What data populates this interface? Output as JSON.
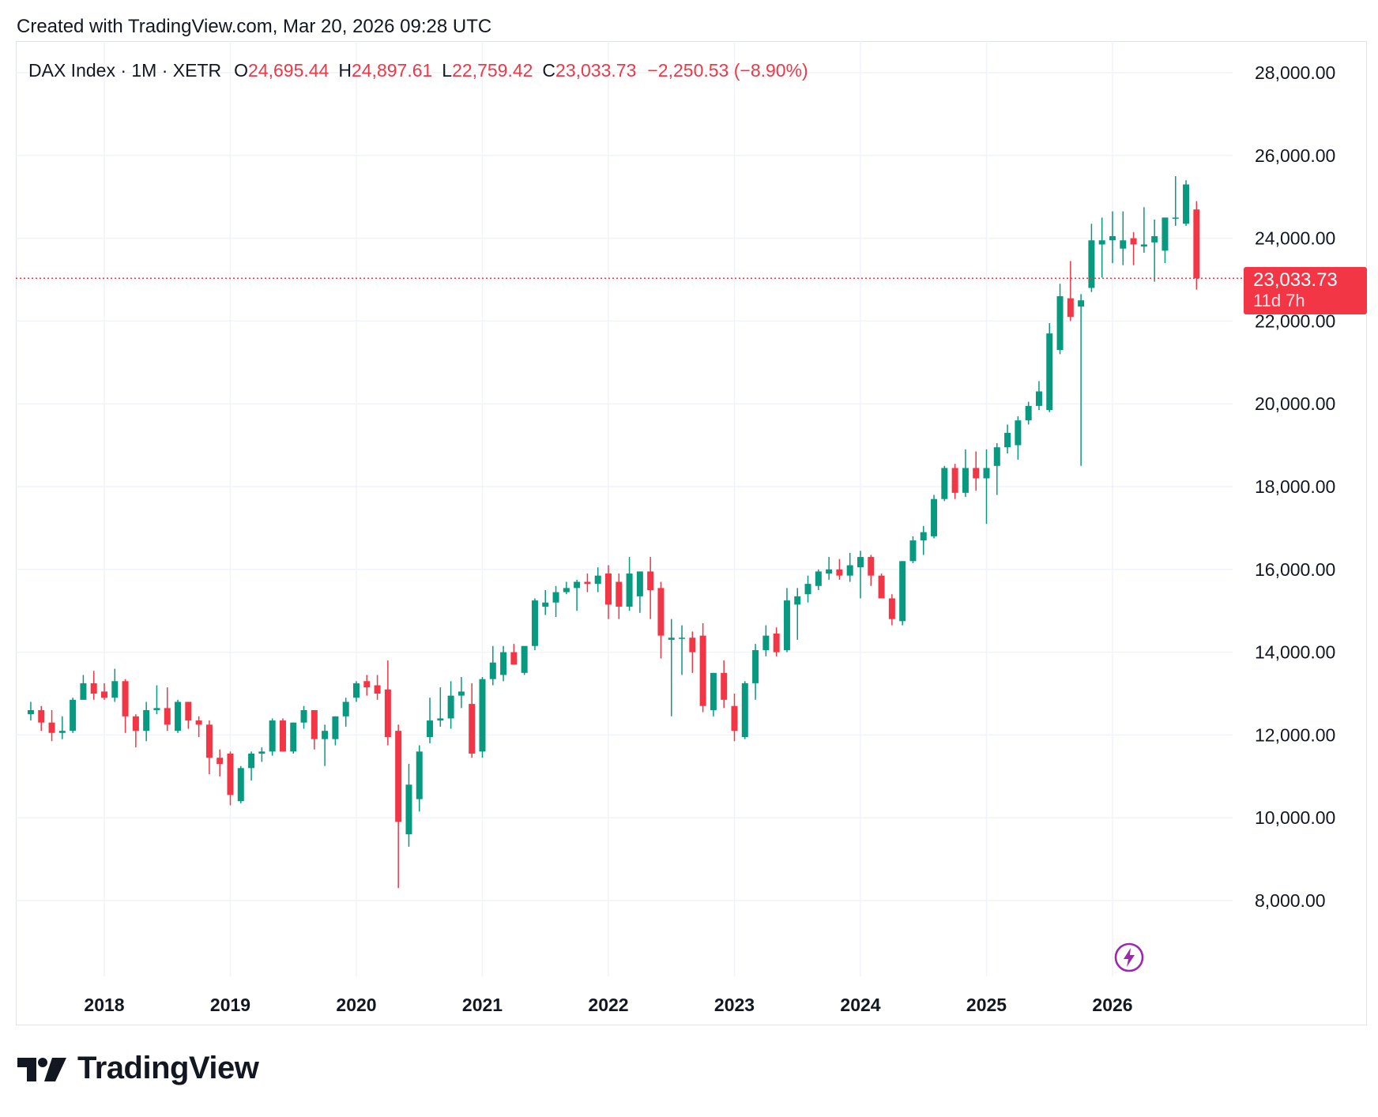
{
  "header": {
    "created_text": "Created with TradingView.com, Mar 20, 2026 09:28 UTC"
  },
  "legend": {
    "symbol": "DAX Index · 1M · XETR",
    "open_key": "O",
    "open": "24,695.44",
    "high_key": "H",
    "high": "24,897.61",
    "low_key": "L",
    "low": "22,759.42",
    "close_key": "C",
    "close": "23,033.73",
    "change": "−2,250.53 (−8.90%)"
  },
  "price_tag": {
    "price": "23,033.73",
    "countdown": "11d 7h"
  },
  "branding": {
    "logo_text": "TradingView"
  },
  "colors": {
    "up": "#089981",
    "down": "#f23645",
    "grid": "#f0f3fa",
    "bolt": "#9c27b0"
  },
  "icons": {
    "alert": "lightning-bolt-icon",
    "logo": "tradingview-logo-icon"
  },
  "chart_data": {
    "type": "candlestick",
    "interval": "1M",
    "ylim": [
      6500,
      28500
    ],
    "y_ticks": [
      8000,
      10000,
      12000,
      14000,
      16000,
      18000,
      20000,
      22000,
      24000,
      26000,
      28000
    ],
    "y_tick_labels": [
      "8,000.00",
      "10,000.00",
      "12,000.00",
      "14,000.00",
      "16,000.00",
      "18,000.00",
      "20,000.00",
      "22,000.00",
      "24,000.00",
      "26,000.00",
      "28,000.00"
    ],
    "x_ticks": [
      "2018-01",
      "2019-01",
      "2020-01",
      "2021-01",
      "2022-01",
      "2023-01",
      "2024-01",
      "2025-01",
      "2026-01"
    ],
    "x_tick_labels": [
      "2018",
      "2019",
      "2020",
      "2021",
      "2022",
      "2023",
      "2024",
      "2025",
      "2026"
    ],
    "x_range": [
      "2017-05",
      "2026-10"
    ],
    "last_price": 23033.73,
    "candles": [
      {
        "t": "2017-06",
        "o": 12500,
        "h": 12800,
        "l": 12350,
        "c": 12600
      },
      {
        "t": "2017-07",
        "o": 12600,
        "h": 12700,
        "l": 12100,
        "c": 12300
      },
      {
        "t": "2017-08",
        "o": 12300,
        "h": 12600,
        "l": 11850,
        "c": 12050
      },
      {
        "t": "2017-09",
        "o": 12050,
        "h": 12450,
        "l": 11900,
        "c": 12100
      },
      {
        "t": "2017-10",
        "o": 12100,
        "h": 12900,
        "l": 12050,
        "c": 12850
      },
      {
        "t": "2017-11",
        "o": 12850,
        "h": 13450,
        "l": 12850,
        "c": 13250
      },
      {
        "t": "2017-12",
        "o": 13250,
        "h": 13550,
        "l": 12850,
        "c": 13000
      },
      {
        "t": "2018-01",
        "o": 13050,
        "h": 13250,
        "l": 12850,
        "c": 12900
      },
      {
        "t": "2018-02",
        "o": 12900,
        "h": 13600,
        "l": 12800,
        "c": 13300
      },
      {
        "t": "2018-03",
        "o": 13300,
        "h": 13350,
        "l": 12050,
        "c": 12450
      },
      {
        "t": "2018-04",
        "o": 12450,
        "h": 12500,
        "l": 11700,
        "c": 12100
      },
      {
        "t": "2018-05",
        "o": 12100,
        "h": 12800,
        "l": 11850,
        "c": 12600
      },
      {
        "t": "2018-06",
        "o": 12600,
        "h": 13200,
        "l": 12500,
        "c": 12650
      },
      {
        "t": "2018-07",
        "o": 12650,
        "h": 13150,
        "l": 12100,
        "c": 12250
      },
      {
        "t": "2018-08",
        "o": 12100,
        "h": 12850,
        "l": 12050,
        "c": 12800
      },
      {
        "t": "2018-09",
        "o": 12800,
        "h": 12800,
        "l": 12150,
        "c": 12350
      },
      {
        "t": "2018-10",
        "o": 12350,
        "h": 12450,
        "l": 11950,
        "c": 12250
      },
      {
        "t": "2018-11",
        "o": 12250,
        "h": 12350,
        "l": 11050,
        "c": 11450
      },
      {
        "t": "2018-12",
        "o": 11450,
        "h": 11650,
        "l": 11000,
        "c": 11300
      },
      {
        "t": "2019-01",
        "o": 11550,
        "h": 11600,
        "l": 10300,
        "c": 10550
      },
      {
        "t": "2019-02",
        "o": 10400,
        "h": 11250,
        "l": 10350,
        "c": 11200
      },
      {
        "t": "2019-03",
        "o": 11200,
        "h": 11600,
        "l": 10900,
        "c": 11550
      },
      {
        "t": "2019-04",
        "o": 11550,
        "h": 11700,
        "l": 11350,
        "c": 11600
      },
      {
        "t": "2019-05",
        "o": 11600,
        "h": 12400,
        "l": 11500,
        "c": 12350
      },
      {
        "t": "2019-06",
        "o": 12350,
        "h": 12400,
        "l": 11600,
        "c": 11600
      },
      {
        "t": "2019-07",
        "o": 11600,
        "h": 12300,
        "l": 11550,
        "c": 12300
      },
      {
        "t": "2019-08",
        "o": 12300,
        "h": 12700,
        "l": 12150,
        "c": 12600
      },
      {
        "t": "2019-09",
        "o": 12600,
        "h": 12600,
        "l": 11650,
        "c": 11900
      },
      {
        "t": "2019-10",
        "o": 11900,
        "h": 12250,
        "l": 11250,
        "c": 12100
      },
      {
        "t": "2019-11",
        "o": 11900,
        "h": 12450,
        "l": 11750,
        "c": 12450
      },
      {
        "t": "2019-12",
        "o": 12450,
        "h": 12900,
        "l": 12200,
        "c": 12800
      },
      {
        "t": "2020-01",
        "o": 12900,
        "h": 13300,
        "l": 12800,
        "c": 13250
      },
      {
        "t": "2020-02",
        "o": 13300,
        "h": 13450,
        "l": 12950,
        "c": 13150
      },
      {
        "t": "2020-03",
        "o": 13200,
        "h": 13450,
        "l": 12850,
        "c": 13000
      },
      {
        "t": "2020-04",
        "o": 13100,
        "h": 13800,
        "l": 11750,
        "c": 11950
      },
      {
        "t": "2020-05",
        "o": 12100,
        "h": 12250,
        "l": 8300,
        "c": 9900
      },
      {
        "t": "2020-06",
        "o": 9600,
        "h": 11300,
        "l": 9300,
        "c": 10800
      },
      {
        "t": "2020-07",
        "o": 10450,
        "h": 11750,
        "l": 10150,
        "c": 11600
      },
      {
        "t": "2020-08",
        "o": 11950,
        "h": 12900,
        "l": 11800,
        "c": 12350
      },
      {
        "t": "2020-09",
        "o": 12350,
        "h": 13150,
        "l": 12200,
        "c": 12400
      },
      {
        "t": "2020-10",
        "o": 12400,
        "h": 13300,
        "l": 12150,
        "c": 12950
      },
      {
        "t": "2020-11",
        "o": 12950,
        "h": 13400,
        "l": 12650,
        "c": 13050
      },
      {
        "t": "2020-12",
        "o": 12750,
        "h": 13250,
        "l": 11450,
        "c": 11550
      },
      {
        "t": "2021-01",
        "o": 11600,
        "h": 13400,
        "l": 11450,
        "c": 13350
      },
      {
        "t": "2021-02",
        "o": 13350,
        "h": 14150,
        "l": 13200,
        "c": 13750
      },
      {
        "t": "2021-03",
        "o": 13450,
        "h": 14150,
        "l": 13300,
        "c": 14000
      },
      {
        "t": "2021-04",
        "o": 14000,
        "h": 14200,
        "l": 13700,
        "c": 13700
      },
      {
        "t": "2021-05",
        "o": 13500,
        "h": 14100,
        "l": 13450,
        "c": 14150
      },
      {
        "t": "2021-06",
        "o": 14150,
        "h": 15300,
        "l": 14050,
        "c": 15250
      },
      {
        "t": "2021-07",
        "o": 15100,
        "h": 15500,
        "l": 14900,
        "c": 15200
      },
      {
        "t": "2021-08",
        "o": 15200,
        "h": 15600,
        "l": 14850,
        "c": 15450
      },
      {
        "t": "2021-09",
        "o": 15450,
        "h": 15700,
        "l": 15400,
        "c": 15550
      },
      {
        "t": "2021-10",
        "o": 15550,
        "h": 15750,
        "l": 15000,
        "c": 15700
      },
      {
        "t": "2021-11",
        "o": 15700,
        "h": 15900,
        "l": 15450,
        "c": 15650
      },
      {
        "t": "2021-12",
        "o": 15650,
        "h": 16050,
        "l": 15450,
        "c": 15850
      },
      {
        "t": "2022-01",
        "o": 15900,
        "h": 16100,
        "l": 14800,
        "c": 15150
      },
      {
        "t": "2022-02",
        "o": 15700,
        "h": 15900,
        "l": 14800,
        "c": 15100
      },
      {
        "t": "2022-03",
        "o": 15100,
        "h": 16300,
        "l": 15000,
        "c": 15900
      },
      {
        "t": "2022-04",
        "o": 15350,
        "h": 15950,
        "l": 14950,
        "c": 15950
      },
      {
        "t": "2022-05",
        "o": 15950,
        "h": 16300,
        "l": 14800,
        "c": 15500
      },
      {
        "t": "2022-06",
        "o": 15550,
        "h": 15700,
        "l": 13850,
        "c": 14400
      },
      {
        "t": "2022-07",
        "o": 14300,
        "h": 14800,
        "l": 12450,
        "c": 14350
      },
      {
        "t": "2022-08",
        "o": 14350,
        "h": 14650,
        "l": 13450,
        "c": 14350
      },
      {
        "t": "2022-09",
        "o": 14350,
        "h": 14500,
        "l": 13500,
        "c": 14000
      },
      {
        "t": "2022-10",
        "o": 14400,
        "h": 14700,
        "l": 12550,
        "c": 12700
      },
      {
        "t": "2022-11",
        "o": 12600,
        "h": 13500,
        "l": 12450,
        "c": 13500
      },
      {
        "t": "2022-12",
        "o": 13500,
        "h": 13800,
        "l": 12650,
        "c": 12850
      },
      {
        "t": "2023-01",
        "o": 12700,
        "h": 13000,
        "l": 11850,
        "c": 12100
      },
      {
        "t": "2023-02",
        "o": 11950,
        "h": 13300,
        "l": 11900,
        "c": 13250
      },
      {
        "t": "2023-03",
        "o": 13250,
        "h": 14200,
        "l": 12850,
        "c": 14050
      },
      {
        "t": "2023-04",
        "o": 14050,
        "h": 14650,
        "l": 13900,
        "c": 14400
      },
      {
        "t": "2023-05",
        "o": 14450,
        "h": 14600,
        "l": 13900,
        "c": 14000
      },
      {
        "t": "2023-06",
        "o": 14050,
        "h": 15550,
        "l": 14000,
        "c": 15250
      },
      {
        "t": "2023-07",
        "o": 15150,
        "h": 15550,
        "l": 14300,
        "c": 15350
      },
      {
        "t": "2023-08",
        "o": 15400,
        "h": 15850,
        "l": 15200,
        "c": 15650
      },
      {
        "t": "2023-09",
        "o": 15600,
        "h": 16000,
        "l": 15500,
        "c": 15950
      },
      {
        "t": "2023-10",
        "o": 15900,
        "h": 16300,
        "l": 15750,
        "c": 16000
      },
      {
        "t": "2023-11",
        "o": 16000,
        "h": 16250,
        "l": 15750,
        "c": 15850
      },
      {
        "t": "2023-12",
        "o": 15850,
        "h": 16400,
        "l": 15700,
        "c": 16100
      },
      {
        "t": "2024-01",
        "o": 16050,
        "h": 16450,
        "l": 15300,
        "c": 16300
      },
      {
        "t": "2024-02",
        "o": 16300,
        "h": 16350,
        "l": 15600,
        "c": 15850
      },
      {
        "t": "2024-03",
        "o": 15850,
        "h": 15900,
        "l": 15300,
        "c": 15300
      },
      {
        "t": "2024-04",
        "o": 15300,
        "h": 15400,
        "l": 14650,
        "c": 14800
      },
      {
        "t": "2024-05",
        "o": 14750,
        "h": 16200,
        "l": 14650,
        "c": 16200
      },
      {
        "t": "2024-06",
        "o": 16200,
        "h": 16800,
        "l": 16150,
        "c": 16700
      },
      {
        "t": "2024-07",
        "o": 16700,
        "h": 17050,
        "l": 16350,
        "c": 16900
      },
      {
        "t": "2024-08",
        "o": 16800,
        "h": 17800,
        "l": 16750,
        "c": 17700
      },
      {
        "t": "2024-09",
        "o": 17700,
        "h": 18500,
        "l": 17650,
        "c": 18450
      },
      {
        "t": "2024-10",
        "o": 18450,
        "h": 18550,
        "l": 17700,
        "c": 17850
      },
      {
        "t": "2024-11",
        "o": 17850,
        "h": 18900,
        "l": 17750,
        "c": 18450
      },
      {
        "t": "2024-12",
        "o": 18450,
        "h": 18850,
        "l": 17900,
        "c": 18200
      },
      {
        "t": "2025-01",
        "o": 18200,
        "h": 18900,
        "l": 17100,
        "c": 18450
      },
      {
        "t": "2025-02",
        "o": 18500,
        "h": 19050,
        "l": 17800,
        "c": 18950
      },
      {
        "t": "2025-03",
        "o": 18950,
        "h": 19500,
        "l": 18800,
        "c": 19300
      },
      {
        "t": "2025-04",
        "o": 19000,
        "h": 19700,
        "l": 18650,
        "c": 19600
      },
      {
        "t": "2025-05",
        "o": 19600,
        "h": 20050,
        "l": 19500,
        "c": 19950
      },
      {
        "t": "2025-06",
        "o": 19950,
        "h": 20550,
        "l": 19850,
        "c": 20300
      },
      {
        "t": "2025-07",
        "o": 19850,
        "h": 21950,
        "l": 19800,
        "c": 21700
      },
      {
        "t": "2025-08",
        "o": 21300,
        "h": 22900,
        "l": 21200,
        "c": 22600
      },
      {
        "t": "2025-09",
        "o": 22550,
        "h": 23450,
        "l": 22000,
        "c": 22100
      },
      {
        "t": "2025-10",
        "o": 22350,
        "h": 22650,
        "l": 18500,
        "c": 22500
      },
      {
        "t": "2025-11",
        "o": 22800,
        "h": 24350,
        "l": 22700,
        "c": 23950
      },
      {
        "t": "2025-12",
        "o": 23850,
        "h": 24500,
        "l": 23050,
        "c": 23950
      },
      {
        "t": "2026-01",
        "o": 23950,
        "h": 24650,
        "l": 23400,
        "c": 24050
      },
      {
        "t": "2026-02",
        "o": 23750,
        "h": 24650,
        "l": 23350,
        "c": 23950
      },
      {
        "t": "2026-03",
        "o": 24000,
        "h": 24150,
        "l": 23350,
        "c": 23850
      },
      {
        "t": "2026-04",
        "o": 23800,
        "h": 24750,
        "l": 23650,
        "c": 23850
      },
      {
        "t": "2026-05",
        "o": 23900,
        "h": 24450,
        "l": 22950,
        "c": 24050
      },
      {
        "t": "2026-06",
        "o": 23700,
        "h": 24500,
        "l": 23400,
        "c": 24500
      },
      {
        "t": "2026-07",
        "o": 24500,
        "h": 25500,
        "l": 24300,
        "c": 24500
      },
      {
        "t": "2026-08",
        "o": 24350,
        "h": 25400,
        "l": 24300,
        "c": 25300
      },
      {
        "t": "2026-09",
        "o": 24695.44,
        "h": 24897.61,
        "l": 22759.42,
        "c": 23033.73
      }
    ]
  }
}
